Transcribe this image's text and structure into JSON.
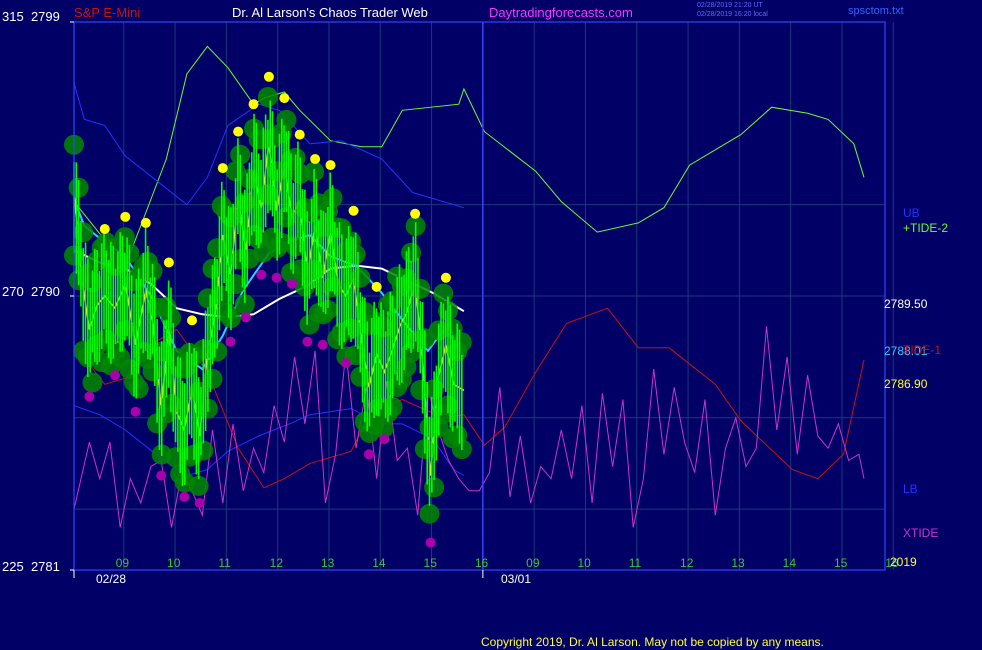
{
  "header": {
    "symbol": "S&P E-Mini",
    "title": "Dr. Al Larson's Chaos Trader Web",
    "site": "Daytradingforecasts.com",
    "stamp_utc": "02/28/2019 21:20 UT",
    "stamp_local": "02/28/2019 16:20 local",
    "file": "spsctom.txt"
  },
  "copyright": "Copyright 2019, Dr. Al Larson. May not be copied by any means.",
  "colors": {
    "background": "#000066",
    "price_bar": "#00ff00",
    "turn_circle": "#008800",
    "high_marker": "#ffff00",
    "low_marker": "#aa00aa",
    "tide2": "#66ff33",
    "tide1": "#cc1111",
    "band": "#2233ff",
    "xtide": "#cc33cc",
    "white_avg": "#ffffff",
    "cyan_avg": "#33ccff",
    "yellow_fast": "#ffff33"
  },
  "chart_data": {
    "type": "line",
    "ylim": [
      2781,
      2799
    ],
    "y_left_labels": [
      {
        "osc": "315",
        "price": "2799"
      },
      {
        "osc": "270",
        "price": "2790"
      },
      {
        "osc": "225",
        "price": "2781"
      }
    ],
    "x_hour_ticks": [
      "09",
      "10",
      "11",
      "12",
      "13",
      "14",
      "15",
      "16",
      "09",
      "10",
      "11",
      "12",
      "13",
      "14",
      "15",
      "16"
    ],
    "x_date_labels": [
      "02/28",
      "03/01"
    ],
    "year_label": "2019",
    "price_labels": [
      {
        "text": "2789.50",
        "value": 2789.5,
        "color": "#ffffff"
      },
      {
        "text": "2788.01",
        "value": 2788.01,
        "color": "#33ccff"
      },
      {
        "text": "2786.90",
        "value": 2786.9,
        "color": "#ffff33"
      }
    ],
    "legend": [
      {
        "text": "UB",
        "color": "#2233ff"
      },
      {
        "text": "+TIDE-2",
        "color": "#66ff33"
      },
      {
        "text": "TIDE-1",
        "color": "#cc1111"
      },
      {
        "text": "LB",
        "color": "#2233ff"
      },
      {
        "text": "XTIDE",
        "color": "#cc33cc"
      }
    ],
    "series": [
      {
        "name": "+TIDE-2",
        "color": "#66ff33",
        "x": [
          0,
          1,
          1.3,
          1.8,
          2.2,
          2.6,
          3.0,
          3.5,
          3.7,
          4.1,
          4.4,
          5.0,
          5.6,
          6.0,
          6.4,
          7.5,
          7.6,
          8.0,
          9.0,
          9.5,
          10.2,
          11.0,
          11.5,
          12.0,
          13.0,
          13.6,
          14.3,
          14.7,
          15.2,
          15.4
        ],
        "values": [
          2793.1,
          2791.0,
          2792.3,
          2794.5,
          2797.3,
          2798.2,
          2797.5,
          2796.3,
          2796.5,
          2796.7,
          2796.1,
          2795.1,
          2794.9,
          2794.9,
          2796.1,
          2796.3,
          2796.8,
          2795.4,
          2794.1,
          2793.1,
          2792.1,
          2792.4,
          2792.9,
          2794.3,
          2795.3,
          2796.2,
          2796.0,
          2795.8,
          2795.0,
          2793.9
        ]
      },
      {
        "name": "TIDE-1",
        "color": "#cc1111",
        "x": [
          0,
          0.6,
          1.0,
          1.4,
          2.0,
          2.6,
          3.2,
          3.7,
          4.1,
          4.6,
          5.4,
          5.8,
          6.4,
          7.2,
          7.6,
          8.0,
          8.4,
          9.0,
          9.6,
          10.4,
          11.0,
          11.6,
          12.5,
          13.0,
          14.0,
          14.5,
          15.0,
          15.4
        ],
        "values": [
          2788.4,
          2787.1,
          2787.3,
          2788.3,
          2788.9,
          2787.5,
          2785.0,
          2783.7,
          2784.0,
          2784.5,
          2784.9,
          2786.2,
          2786.6,
          2786.0,
          2786.1,
          2785.1,
          2785.7,
          2787.5,
          2789.1,
          2789.6,
          2788.3,
          2788.3,
          2787.1,
          2785.9,
          2784.3,
          2784.0,
          2784.8,
          2787.9
        ]
      },
      {
        "name": "UB",
        "color": "#2233ff",
        "x": [
          0,
          0.2,
          0.6,
          1.0,
          1.6,
          2.2,
          2.6,
          3.0,
          3.6,
          4.0,
          4.6,
          5.2,
          6.0,
          6.6,
          7.2,
          7.6
        ],
        "values": [
          2797.0,
          2795.8,
          2795.6,
          2794.6,
          2793.8,
          2793.0,
          2793.9,
          2795.6,
          2796.3,
          2796.1,
          2795.0,
          2795.1,
          2794.5,
          2793.4,
          2793.1,
          2792.9
        ]
      },
      {
        "name": "LB",
        "color": "#2233ff",
        "x": [
          0,
          0.5,
          1.0,
          1.6,
          2.2,
          2.6,
          3.0,
          3.6,
          4.2,
          4.6,
          5.4,
          6.0,
          6.4,
          7.0,
          7.4,
          7.6
        ],
        "values": [
          2786.4,
          2786.1,
          2785.6,
          2784.8,
          2784.1,
          2784.3,
          2784.9,
          2785.4,
          2785.8,
          2786.1,
          2786.3,
          2785.8,
          2785.8,
          2785.3,
          2784.3,
          2784.1
        ]
      },
      {
        "name": "white",
        "color": "#ffffff",
        "x": [
          0,
          0.5,
          1.0,
          1.5,
          2.0,
          2.5,
          3.0,
          3.5,
          4.0,
          4.5,
          5.0,
          5.5,
          6.0,
          6.5,
          7.0,
          7.6
        ],
        "values": [
          2791.5,
          2791.1,
          2790.9,
          2790.4,
          2789.6,
          2789.4,
          2789.3,
          2789.4,
          2789.9,
          2790.3,
          2790.9,
          2791.0,
          2790.9,
          2790.5,
          2790.1,
          2789.5
        ]
      },
      {
        "name": "cyan",
        "color": "#33ccff",
        "x": [
          0,
          0.2,
          0.5,
          1.0,
          1.5,
          2.0,
          2.5,
          2.9,
          3.3,
          3.8,
          4.2,
          4.6,
          5.0,
          5.5,
          6.0,
          6.5,
          6.9,
          7.3,
          7.6
        ],
        "values": [
          2793.2,
          2792.3,
          2791.9,
          2791.3,
          2790.0,
          2788.2,
          2787.6,
          2788.7,
          2790.2,
          2791.4,
          2791.8,
          2792.0,
          2791.3,
          2791.0,
          2790.1,
          2789.0,
          2788.2,
          2789.1,
          2788.0
        ]
      },
      {
        "name": "yellow",
        "color": "#ffff33",
        "x": [
          0,
          0.15,
          0.3,
          0.45,
          0.6,
          0.8,
          1.0,
          1.2,
          1.4,
          1.55,
          1.7,
          1.85,
          2.0,
          2.15,
          2.3,
          2.45,
          2.6,
          2.75,
          2.9,
          3.05,
          3.2,
          3.35,
          3.5,
          3.65,
          3.8,
          3.95,
          4.1,
          4.25,
          4.4,
          4.55,
          4.7,
          4.85,
          5.0,
          5.15,
          5.3,
          5.45,
          5.6,
          5.75,
          5.9,
          6.05,
          6.2,
          6.35,
          6.5,
          6.65,
          6.8,
          6.95,
          7.1,
          7.25,
          7.4,
          7.6
        ],
        "values": [
          2793.4,
          2790.6,
          2788.9,
          2789.7,
          2790.0,
          2789.6,
          2790.4,
          2788.4,
          2790.2,
          2789.0,
          2786.3,
          2788.9,
          2786.2,
          2785.6,
          2787.0,
          2785.4,
          2788.1,
          2789.4,
          2792.0,
          2790.7,
          2793.2,
          2791.5,
          2794.1,
          2792.9,
          2795.0,
          2792.8,
          2794.3,
          2792.6,
          2793.1,
          2790.7,
          2792.3,
          2790.6,
          2792.1,
          2790.4,
          2790.0,
          2790.6,
          2788.6,
          2787.0,
          2788.1,
          2787.5,
          2788.2,
          2789.0,
          2789.5,
          2790.5,
          2787.8,
          2784.1,
          2787.3,
          2788.4,
          2787.1,
          2786.9
        ]
      },
      {
        "name": "XTIDE",
        "color": "#cc33cc",
        "x": [
          0,
          0.3,
          0.5,
          0.7,
          0.9,
          1.1,
          1.3,
          1.5,
          1.7,
          1.9,
          2.1,
          2.3,
          2.5,
          2.7,
          2.9,
          3.1,
          3.3,
          3.5,
          3.7,
          3.9,
          4.1,
          4.3,
          4.5,
          4.7,
          4.9,
          5.1,
          5.3,
          5.5,
          5.7,
          5.9,
          6.1,
          6.3,
          6.5,
          6.7,
          6.9,
          7.1,
          7.3,
          7.5,
          7.7,
          7.9,
          8.1,
          8.3,
          8.5,
          8.7,
          8.9,
          9.1,
          9.3,
          9.5,
          9.7,
          9.9,
          10.1,
          10.3,
          10.5,
          10.7,
          10.9,
          11.1,
          11.3,
          11.5,
          11.7,
          11.9,
          12.1,
          12.3,
          12.5,
          12.7,
          12.9,
          13.1,
          13.3,
          13.5,
          13.7,
          13.9,
          14.1,
          14.3,
          14.5,
          14.7,
          14.9,
          15.1,
          15.3,
          15.4
        ],
        "values": [
          235,
          246,
          240,
          246,
          232,
          240,
          236,
          242,
          243,
          232,
          241,
          238,
          234,
          248,
          236,
          249,
          238,
          245,
          241,
          252,
          246,
          260,
          249,
          261,
          236,
          244,
          261,
          245,
          255,
          240,
          256,
          243,
          245,
          234,
          255,
          248,
          243,
          240,
          238,
          238,
          241,
          255,
          237,
          247,
          236,
          242,
          240,
          248,
          240,
          252,
          236,
          254,
          242,
          253,
          232,
          240,
          258,
          244,
          255,
          246,
          241,
          253,
          234,
          245,
          250,
          242,
          245,
          265,
          248,
          260,
          244,
          257,
          247,
          245,
          249,
          243,
          244,
          240
        ]
      }
    ]
  }
}
